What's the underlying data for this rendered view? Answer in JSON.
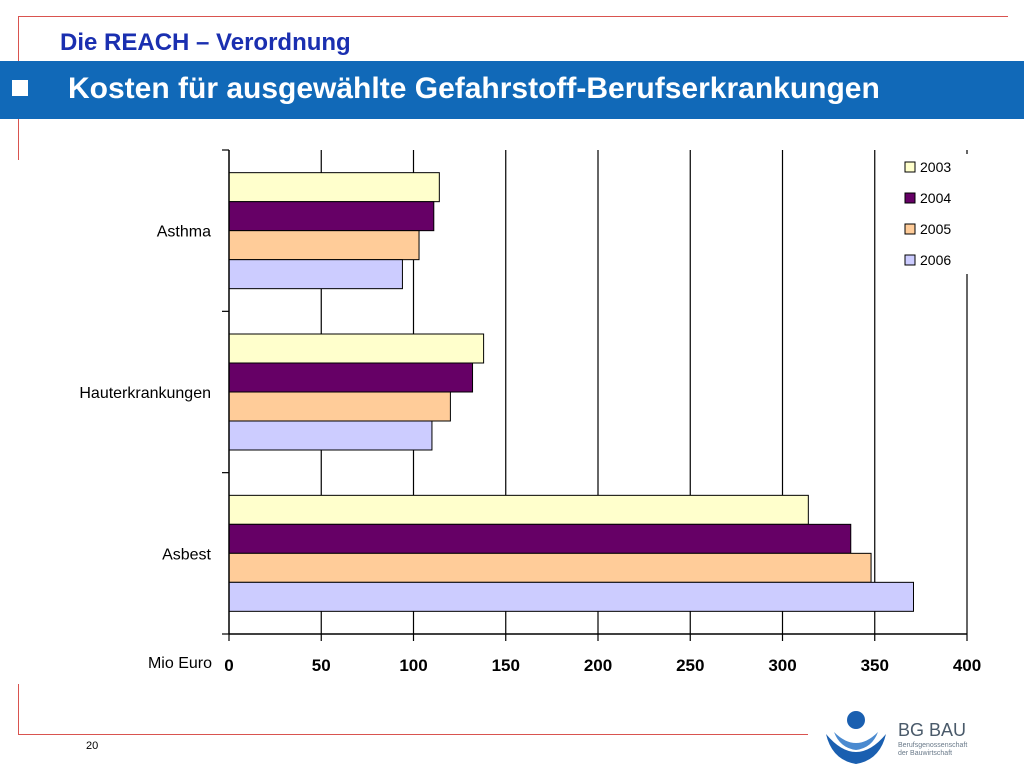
{
  "header": {
    "super_title": "Die REACH – Verordnung",
    "title": "Kosten für ausgewählte Gefahrstoff-Berufserkrankungen"
  },
  "footer": {
    "page_number": "20",
    "logo_name": "BG BAU",
    "logo_subtitle_1": "Berufsgenossenschaft",
    "logo_subtitle_2": "der Bauwirtschaft"
  },
  "colors": {
    "title_bar": "#1169b8",
    "super_title": "#1a2fb0",
    "accent_lines": "#d9534f"
  },
  "chart_data": {
    "type": "bar",
    "orientation": "horizontal",
    "categories": [
      "Asthma",
      "Hauterkrankungen",
      "Asbest"
    ],
    "series": [
      {
        "name": "2003",
        "color": "#ffffcc",
        "values": [
          114,
          138,
          314
        ]
      },
      {
        "name": "2004",
        "color": "#660066",
        "values": [
          111,
          132,
          337
        ]
      },
      {
        "name": "2005",
        "color": "#ffcc99",
        "values": [
          103,
          120,
          348
        ]
      },
      {
        "name": "2006",
        "color": "#ccccff",
        "values": [
          94,
          110,
          371
        ]
      }
    ],
    "x_ticks": [
      "0",
      "50",
      "100",
      "150",
      "200",
      "250",
      "300",
      "350",
      "400"
    ],
    "xlim": [
      0,
      400
    ],
    "xlabel": "Mio Euro",
    "grid": true,
    "legend_position": "top-right"
  }
}
